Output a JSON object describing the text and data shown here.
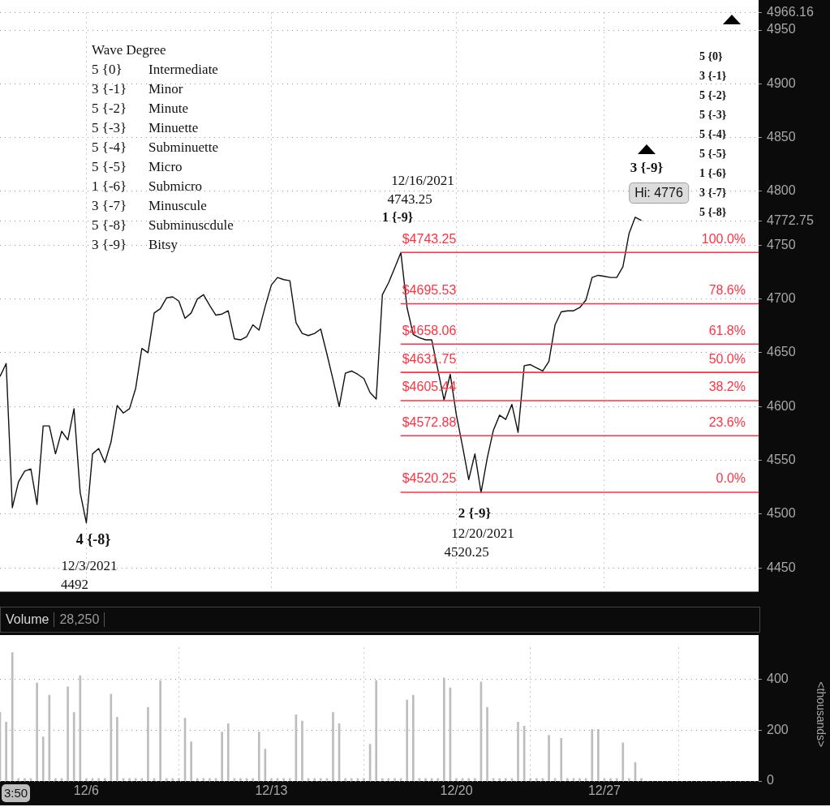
{
  "chart_data": [
    {
      "type": "line",
      "marker": "none",
      "line_style": "solid",
      "grid": true,
      "legend": false,
      "tick_labels": "y",
      "categories": [
        null,
        null,
        null,
        null,
        null,
        null,
        null,
        null,
        null,
        null,
        null,
        null,
        null,
        null,
        null,
        null,
        null,
        null,
        null,
        null,
        null,
        null,
        null,
        null,
        null,
        null,
        null,
        null,
        null,
        null,
        null,
        null,
        null,
        null,
        null,
        null,
        null,
        null,
        null,
        null,
        null,
        null,
        null,
        null,
        null,
        null,
        null,
        null,
        null,
        null,
        null,
        null,
        null,
        null,
        null,
        null,
        null,
        null,
        null,
        null,
        null,
        null,
        null,
        null,
        null,
        null,
        null,
        null,
        null,
        null,
        null,
        null,
        null,
        null,
        null,
        null,
        null,
        null,
        null,
        null,
        null,
        null,
        null,
        null,
        null,
        null,
        null,
        null,
        null,
        null,
        null,
        null,
        null,
        null,
        null,
        null,
        null,
        null,
        null,
        null,
        null,
        null,
        null,
        null,
        null,
        null,
        null,
        null,
        null,
        null,
        null,
        null,
        null,
        null,
        null,
        null,
        null,
        null,
        null,
        null,
        null,
        null,
        null,
        null
      ],
      "series": [
        {
          "color": "#111111",
          "values": [
            4628,
            4640,
            4506,
            4530,
            4540,
            4542,
            4509,
            4582,
            4582,
            4556,
            4577,
            4569,
            4598,
            4520,
            4492,
            4556,
            4561,
            4548,
            4567,
            4601,
            4594,
            4598,
            4617,
            4654,
            4650,
            4687,
            4691,
            4701,
            4702,
            4698,
            4682,
            4687,
            4700,
            4704,
            4694,
            4685,
            4686,
            4689,
            4663,
            4662,
            4665,
            4676,
            4671,
            4693,
            4713,
            4720,
            4718,
            4717,
            4678,
            4668,
            4666,
            4668,
            4672,
            4649,
            4625,
            4600,
            4631,
            4633,
            4630,
            4626,
            4613,
            4607,
            4704,
            4715,
            4729,
            4743,
            4692,
            4667,
            4664,
            4662,
            4662,
            4634,
            4606,
            4630,
            4592,
            4563,
            4532,
            4556,
            4520,
            4552,
            4578,
            4592,
            4588,
            4602,
            4576,
            4638,
            4639,
            4636,
            4633,
            4642,
            4676,
            4688,
            4689,
            4689,
            4692,
            4699,
            4720,
            4722,
            4721,
            4720,
            4720,
            4730,
            4761,
            4776,
            4773,
            null,
            null,
            null,
            null,
            null,
            null,
            null,
            null,
            null,
            null,
            null,
            null,
            null,
            null,
            null,
            null,
            null,
            null,
            null
          ]
        }
      ],
      "ylim": [
        4428,
        4966.16
      ],
      "yticks": [
        4450,
        4500,
        4550,
        4600,
        4650,
        4700,
        4750,
        4772.75,
        4800,
        4850,
        4900,
        4950,
        4966.16
      ],
      "ref_lines": [
        {
          "axis": "y",
          "value": 4743.25,
          "label": "$4743.25",
          "color": "#ff3344"
        },
        {
          "axis": "y",
          "value": 4695.53,
          "label": "$4695.53",
          "color": "#ff3344"
        },
        {
          "axis": "y",
          "value": 4658.06,
          "label": "$4658.06",
          "color": "#ff3344"
        },
        {
          "axis": "y",
          "value": 4631.75,
          "label": "$4631.75",
          "color": "#ff3344"
        },
        {
          "axis": "y",
          "value": 4605.44,
          "label": "$4605.44",
          "color": "#ff3344"
        },
        {
          "axis": "y",
          "value": 4572.88,
          "label": "$4572.88",
          "color": "#ff3344"
        },
        {
          "axis": "y",
          "value": 4520.25,
          "label": "$4520.25",
          "color": "#ff3344"
        }
      ],
      "annotations": [
        "Wave Degree\n5 {0}\tIntermediate\n3 {-1}\tMinor\n5 {-2}\tMinute\n5 {-3}\tMinuette\n5 {-4}\tSubminuette\n5 {-5}\tMicro\n1 {-6}\tSubmicro\n3 {-7}\tMinuscule\n5 {-8}\tSubminuscdule\n3 {-9}\tBitsy",
        "5 {0}\n3 {-1}\n5 {-2}\n5 {-3}\n5 {-4}\n5 {-5}\n1 {-6}\n3 {-7}\n5 {-8}",
        "4 {-8}",
        "12/3/2021",
        "4492",
        "12/16/2021",
        "4743.25",
        "1 {-9}",
        "3 {-9}",
        "Hi: 4776",
        "2 {-9}",
        "12/20/2021",
        "4520.25",
        {
          "text": "100.0%",
          "y": 4743.25
        },
        {
          "text": "78.6%",
          "y": 4695.53
        },
        {
          "text": "61.8%",
          "y": 4658.06
        },
        {
          "text": "50.0%",
          "y": 4631.75
        },
        {
          "text": "38.2%",
          "y": 4605.44
        },
        {
          "text": "23.6%",
          "y": 4572.88
        },
        {
          "text": "0.0%",
          "y": 4520.25
        }
      ]
    },
    {
      "type": "bar",
      "title": "Volume",
      "subtitle": "28,250",
      "ylabel": "<thousands>",
      "grid": true,
      "legend": false,
      "categories": [
        null,
        null,
        null,
        null,
        null,
        null,
        null,
        null,
        null,
        null,
        null,
        null,
        null,
        null,
        "12/6",
        null,
        null,
        null,
        null,
        null,
        null,
        null,
        null,
        null,
        null,
        null,
        null,
        null,
        null,
        null,
        null,
        null,
        null,
        null,
        null,
        null,
        null,
        null,
        null,
        null,
        null,
        null,
        null,
        null,
        "12/13",
        null,
        null,
        null,
        null,
        null,
        null,
        null,
        null,
        null,
        null,
        null,
        null,
        null,
        null,
        null,
        null,
        null,
        null,
        null,
        null,
        null,
        null,
        null,
        null,
        null,
        null,
        null,
        null,
        null,
        "12/20",
        null,
        null,
        null,
        null,
        null,
        null,
        null,
        null,
        null,
        null,
        null,
        null,
        null,
        null,
        null,
        null,
        null,
        null,
        null,
        null,
        null,
        null,
        null,
        "12/27",
        null,
        null,
        null,
        null,
        null,
        null,
        null,
        null,
        null,
        null,
        null,
        null,
        null,
        null,
        null,
        null,
        null,
        null,
        null,
        null,
        null,
        null,
        null,
        null,
        null
      ],
      "series": [
        {
          "color": "#bdbdbd",
          "values": [
            270,
            232,
            506,
            10,
            10,
            10,
            386,
            174,
            338,
            10,
            10,
            371,
            270,
            415,
            10,
            10,
            10,
            10,
            342,
            251,
            10,
            10,
            10,
            10,
            290,
            10,
            396,
            10,
            10,
            10,
            247,
            155,
            10,
            10,
            10,
            10,
            193,
            226,
            10,
            10,
            10,
            10,
            193,
            126,
            10,
            10,
            10,
            10,
            261,
            236,
            10,
            10,
            10,
            10,
            270,
            226,
            10,
            10,
            10,
            10,
            145,
            396,
            10,
            10,
            10,
            10,
            319,
            338,
            10,
            10,
            10,
            10,
            406,
            367,
            10,
            10,
            10,
            10,
            390,
            290,
            10,
            10,
            10,
            10,
            232,
            216,
            10,
            10,
            10,
            180,
            10,
            168,
            10,
            10,
            10,
            10,
            203,
            203,
            10,
            10,
            10,
            151,
            10,
            73,
            10,
            null,
            null,
            null,
            null,
            null,
            null,
            null,
            null,
            null,
            null,
            null,
            null,
            null,
            null,
            null,
            null,
            null,
            null,
            null
          ]
        }
      ],
      "ylim": [
        0,
        525
      ],
      "yticks": [
        0,
        200,
        400
      ],
      "annotations": [
        "3:50"
      ]
    }
  ]
}
